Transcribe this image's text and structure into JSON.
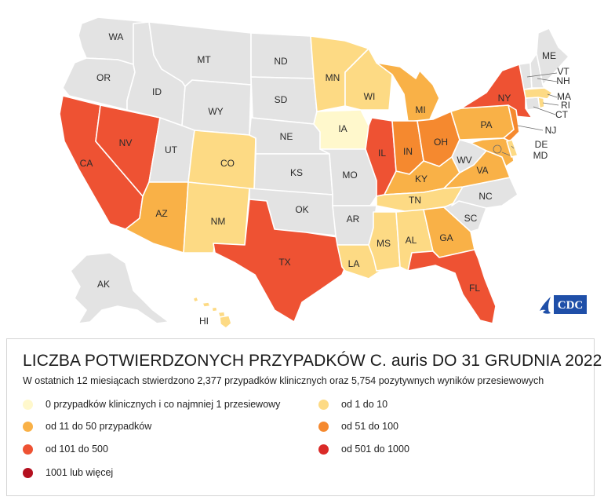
{
  "legend": {
    "title": "LICZBA POTWIERDZONYCH PRZYPADKÓW C. auris DO 31 GRUDNIA 2022",
    "subtitle": "W ostatnich 12 miesiącach stwierdzono 2,377 przypadków klinicznych oraz 5,754 pozytywnych wyników przesiewowych",
    "items": [
      {
        "label": "0 przypadków klinicznych i co najmniej 1 przesiewowy",
        "color": "#FFF8CC"
      },
      {
        "label": "od 1  do  10",
        "color": "#FDDA84"
      },
      {
        "label": "od 11  do 50 przypadków",
        "color": "#F9B147"
      },
      {
        "label": "od 51  do  100",
        "color": "#F5892F"
      },
      {
        "label": "od 101  do  500",
        "color": "#EE5233"
      },
      {
        "label": "od 501  do  1000",
        "color": "#DA2A27"
      },
      {
        "label": "1001 lub więcej",
        "color": "#B4101F"
      }
    ]
  },
  "logo": {
    "text": "CDC",
    "color": "#1F4FA8"
  },
  "no_data_color": "#E3E3E3",
  "states": [
    {
      "code": "WA",
      "label": "WA",
      "tier": "none"
    },
    {
      "code": "OR",
      "label": "OR",
      "tier": "none"
    },
    {
      "code": "CA",
      "label": "CA",
      "tier": "101-500"
    },
    {
      "code": "NV",
      "label": "NV",
      "tier": "101-500"
    },
    {
      "code": "ID",
      "label": "ID",
      "tier": "none"
    },
    {
      "code": "MT",
      "label": "MT",
      "tier": "none"
    },
    {
      "code": "WY",
      "label": "WY",
      "tier": "none"
    },
    {
      "code": "UT",
      "label": "UT",
      "tier": "none"
    },
    {
      "code": "AZ",
      "label": "AZ",
      "tier": "11-50"
    },
    {
      "code": "CO",
      "label": "CO",
      "tier": "1-10"
    },
    {
      "code": "NM",
      "label": "NM",
      "tier": "1-10"
    },
    {
      "code": "ND",
      "label": "ND",
      "tier": "none"
    },
    {
      "code": "SD",
      "label": "SD",
      "tier": "none"
    },
    {
      "code": "NE",
      "label": "NE",
      "tier": "none"
    },
    {
      "code": "KS",
      "label": "KS",
      "tier": "none"
    },
    {
      "code": "OK",
      "label": "OK",
      "tier": "none"
    },
    {
      "code": "TX",
      "label": "TX",
      "tier": "101-500"
    },
    {
      "code": "MN",
      "label": "MN",
      "tier": "1-10"
    },
    {
      "code": "IA",
      "label": "IA",
      "tier": "screening-only"
    },
    {
      "code": "MO",
      "label": "MO",
      "tier": "none"
    },
    {
      "code": "AR",
      "label": "AR",
      "tier": "none"
    },
    {
      "code": "LA",
      "label": "LA",
      "tier": "1-10"
    },
    {
      "code": "WI",
      "label": "WI",
      "tier": "1-10"
    },
    {
      "code": "IL",
      "label": "IL",
      "tier": "101-500"
    },
    {
      "code": "MI",
      "label": "MI",
      "tier": "11-50"
    },
    {
      "code": "IN",
      "label": "IN",
      "tier": "51-100"
    },
    {
      "code": "OH",
      "label": "OH",
      "tier": "51-100"
    },
    {
      "code": "KY",
      "label": "KY",
      "tier": "11-50"
    },
    {
      "code": "TN",
      "label": "TN",
      "tier": "1-10"
    },
    {
      "code": "MS",
      "label": "MS",
      "tier": "1-10"
    },
    {
      "code": "AL",
      "label": "AL",
      "tier": "1-10"
    },
    {
      "code": "GA",
      "label": "GA",
      "tier": "11-50"
    },
    {
      "code": "FL",
      "label": "FL",
      "tier": "101-500"
    },
    {
      "code": "SC",
      "label": "SC",
      "tier": "none"
    },
    {
      "code": "NC",
      "label": "NC",
      "tier": "none"
    },
    {
      "code": "VA",
      "label": "VA",
      "tier": "11-50"
    },
    {
      "code": "WV",
      "label": "WV",
      "tier": "none"
    },
    {
      "code": "PA",
      "label": "PA",
      "tier": "11-50"
    },
    {
      "code": "NY",
      "label": "NY",
      "tier": "101-500"
    },
    {
      "code": "NJ",
      "label": "NJ",
      "tier": "51-100"
    },
    {
      "code": "DE",
      "label": "DE",
      "tier": "1-10"
    },
    {
      "code": "MD",
      "label": "MD",
      "tier": "11-50"
    },
    {
      "code": "CT",
      "label": "CT",
      "tier": "none"
    },
    {
      "code": "RI",
      "label": "RI",
      "tier": "1-10"
    },
    {
      "code": "MA",
      "label": "MA",
      "tier": "1-10"
    },
    {
      "code": "VT",
      "label": "VT",
      "tier": "none"
    },
    {
      "code": "NH",
      "label": "NH",
      "tier": "none"
    },
    {
      "code": "ME",
      "label": "ME",
      "tier": "none"
    },
    {
      "code": "AK",
      "label": "AK",
      "tier": "none"
    },
    {
      "code": "HI",
      "label": "HI",
      "tier": "1-10"
    }
  ]
}
